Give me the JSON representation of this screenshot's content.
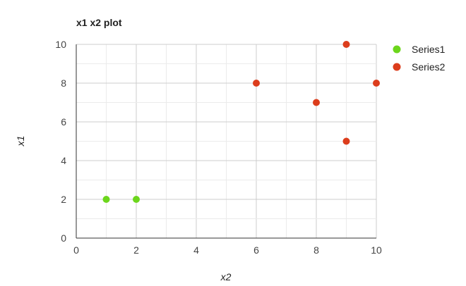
{
  "chart_data": {
    "type": "scatter",
    "title": "x1 x2 plot",
    "xlabel": "x2",
    "ylabel": "x1",
    "xlim": [
      0,
      10
    ],
    "ylim": [
      0,
      10
    ],
    "xticks": [
      "0",
      "2",
      "4",
      "6",
      "8",
      "10"
    ],
    "yticks": [
      "0",
      "2",
      "4",
      "6",
      "8",
      "10"
    ],
    "grid": true,
    "legend_position": "right",
    "series": [
      {
        "name": "Series1",
        "color": "#6cd61c",
        "points": [
          {
            "x": 1,
            "y": 2
          },
          {
            "x": 2,
            "y": 2
          }
        ]
      },
      {
        "name": "Series2",
        "color": "#dc3d1c",
        "points": [
          {
            "x": 6,
            "y": 8
          },
          {
            "x": 8,
            "y": 7
          },
          {
            "x": 9,
            "y": 10
          },
          {
            "x": 9,
            "y": 5
          },
          {
            "x": 10,
            "y": 8
          }
        ]
      }
    ]
  }
}
